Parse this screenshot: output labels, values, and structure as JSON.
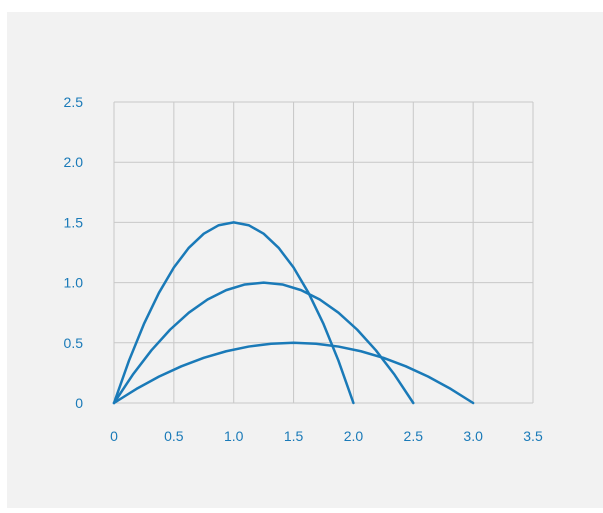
{
  "chart_data": {
    "type": "line",
    "title": "",
    "xlabel": "",
    "ylabel": "",
    "xlim": [
      0,
      3.5
    ],
    "ylim": [
      0,
      2.5
    ],
    "grid": true,
    "legend": "none",
    "x_ticks": [
      "0",
      "0.5",
      "1.0",
      "1.5",
      "2.0",
      "2.5",
      "3.0",
      "3.5"
    ],
    "y_ticks": [
      "0",
      "0.5",
      "1.0",
      "1.5",
      "2.0",
      "2.5"
    ],
    "x_tick_values": [
      0,
      0.5,
      1.0,
      1.5,
      2.0,
      2.5,
      3.0,
      3.5
    ],
    "y_tick_values": [
      0,
      0.5,
      1.0,
      1.5,
      2.0,
      2.5
    ],
    "series": [
      {
        "x": [
          0,
          0.125,
          0.25,
          0.375,
          0.5,
          0.625,
          0.75,
          0.875,
          1.0,
          1.125,
          1.25,
          1.375,
          1.5,
          1.625,
          1.75,
          1.875,
          2.0
        ],
        "y": [
          0,
          0.3516,
          0.6563,
          0.9141,
          1.125,
          1.2891,
          1.4063,
          1.4766,
          1.5,
          1.4766,
          1.4063,
          1.2891,
          1.125,
          0.9141,
          0.6563,
          0.3516,
          0
        ]
      },
      {
        "x": [
          0,
          0.15625,
          0.3125,
          0.46875,
          0.625,
          0.78125,
          0.9375,
          1.09375,
          1.25,
          1.40625,
          1.5625,
          1.71875,
          1.875,
          2.03125,
          2.1875,
          2.34375,
          2.5
        ],
        "y": [
          0,
          0.2344,
          0.4375,
          0.6094,
          0.75,
          0.8594,
          0.9375,
          0.9844,
          1.0,
          0.9844,
          0.9375,
          0.8594,
          0.75,
          0.6094,
          0.4375,
          0.2344,
          0
        ]
      },
      {
        "x": [
          0,
          0.1875,
          0.375,
          0.5625,
          0.75,
          0.9375,
          1.125,
          1.3125,
          1.5,
          1.6875,
          1.875,
          2.0625,
          2.25,
          2.4375,
          2.625,
          2.8125,
          3.0
        ],
        "y": [
          0,
          0.1172,
          0.2188,
          0.3047,
          0.375,
          0.4297,
          0.4688,
          0.4922,
          0.5,
          0.4922,
          0.4688,
          0.4297,
          0.375,
          0.3047,
          0.2188,
          0.1172,
          0
        ]
      }
    ],
    "colors": {
      "line": "#1a7ab8",
      "grid": "#c8c8c8",
      "tick_text": "#1a7ab8",
      "panel": "#f2f2f2"
    }
  }
}
